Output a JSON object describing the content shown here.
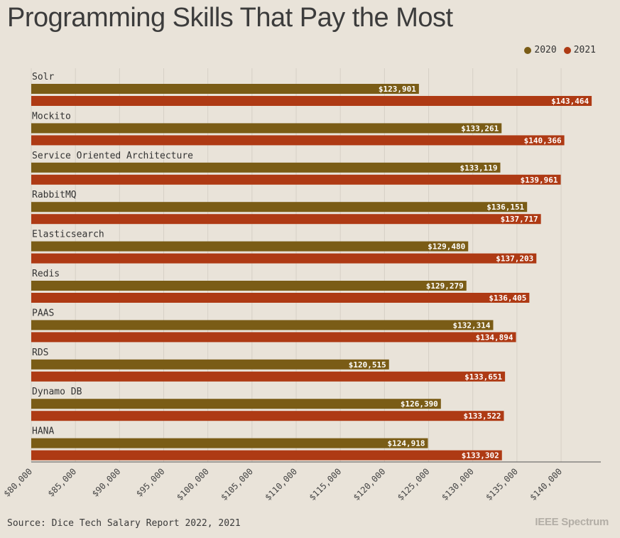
{
  "title": "Programming Skills That Pay the Most",
  "source": "Source: Dice Tech Salary Report 2022, 2021",
  "logo": "IEEE Spectrum",
  "legend": [
    {
      "label": "2020",
      "color": "#7a5c16"
    },
    {
      "label": "2021",
      "color": "#ae3a14"
    }
  ],
  "chart_data": {
    "type": "bar",
    "orientation": "horizontal",
    "categories": [
      "Solr",
      "Mockito",
      "Service Oriented Architecture",
      "RabbitMQ",
      "Elasticsearch",
      "Redis",
      "PAAS",
      "RDS",
      "Dynamo DB",
      "HANA"
    ],
    "series": [
      {
        "name": "2020",
        "color": "#7a5c16",
        "values": [
          123901,
          133261,
          133119,
          136151,
          129480,
          129279,
          132314,
          120515,
          126390,
          124918
        ],
        "labels": [
          "$123,901",
          "$133,261",
          "$133,119",
          "$136,151",
          "$129,480",
          "$129,279",
          "$132,314",
          "$120,515",
          "$126,390",
          "$124,918"
        ]
      },
      {
        "name": "2021",
        "color": "#ae3a14",
        "values": [
          143464,
          140366,
          139961,
          137717,
          137203,
          136405,
          134894,
          133651,
          133522,
          133302
        ],
        "labels": [
          "$143,464",
          "$140,366",
          "$139,961",
          "$137,717",
          "$137,203",
          "$136,405",
          "$134,894",
          "$133,651",
          "$133,522",
          "$133,302"
        ]
      }
    ],
    "xlim": [
      80000,
      144500
    ],
    "xticks": [
      80000,
      85000,
      90000,
      95000,
      100000,
      105000,
      110000,
      115000,
      120000,
      125000,
      130000,
      135000,
      140000
    ],
    "xtick_labels": [
      "$80,000",
      "$85,000",
      "$90,000",
      "$95,000",
      "$100,000",
      "$105,000",
      "$110,000",
      "$115,000",
      "$120,000",
      "$125,000",
      "$130,000",
      "$135,000",
      "$140,000"
    ],
    "grid": true,
    "legend_position": "top-right"
  }
}
